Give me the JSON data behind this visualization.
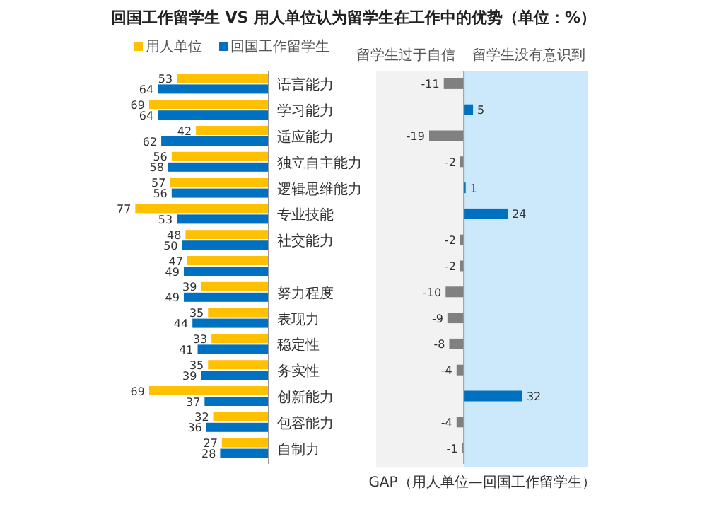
{
  "chart_data": [
    {
      "type": "bar",
      "orientation": "horizontal",
      "title": "回国工作留学生 VS 用人单位认为留学生在工作中的优势（单位：%）",
      "categories": [
        "语言能力",
        "学习能力",
        "适应能力",
        "独立自主能力",
        "逻辑思维能力",
        "专业技能",
        "社交能力",
        null,
        "努力程度",
        "表现力",
        "稳定性",
        "务实性",
        "创新能力",
        "包容能力",
        "自制力"
      ],
      "series": [
        {
          "name": "用人单位",
          "color": "#ffc000",
          "values": [
            53,
            69,
            42,
            56,
            57,
            77,
            48,
            47,
            39,
            35,
            33,
            35,
            69,
            32,
            27
          ]
        },
        {
          "name": "回国工作留学生",
          "color": "#0070c0",
          "values": [
            64,
            64,
            62,
            58,
            56,
            53,
            50,
            49,
            49,
            44,
            41,
            39,
            37,
            36,
            28
          ]
        }
      ],
      "xlim": [
        80,
        0
      ],
      "data_labels": true,
      "legend": "top"
    },
    {
      "type": "bar",
      "orientation": "horizontal",
      "values": [
        -11,
        5,
        -19,
        -2,
        1,
        24,
        -2,
        -2,
        -10,
        -9,
        -8,
        -4,
        32,
        -4,
        -1
      ],
      "colors": [
        "#808080",
        "#0070c0",
        "#808080",
        "#808080",
        "#0070c0",
        "#0070c0",
        "#808080",
        "#808080",
        "#808080",
        "#808080",
        "#808080",
        "#808080",
        "#0070c0",
        "#808080",
        "#808080"
      ],
      "xlim": [
        -48,
        68
      ],
      "data_labels": true,
      "bands": [
        {
          "axis": "x",
          "from": -48,
          "to": 0,
          "label": "留学生过于自信",
          "color": "#f2f2f2"
        },
        {
          "axis": "x",
          "from": 0,
          "to": 68,
          "label": "留学生没有意识到",
          "color": "#cce9fb"
        }
      ],
      "annotations": [
        "GAP（用人单位—回国工作留学生）"
      ]
    }
  ]
}
